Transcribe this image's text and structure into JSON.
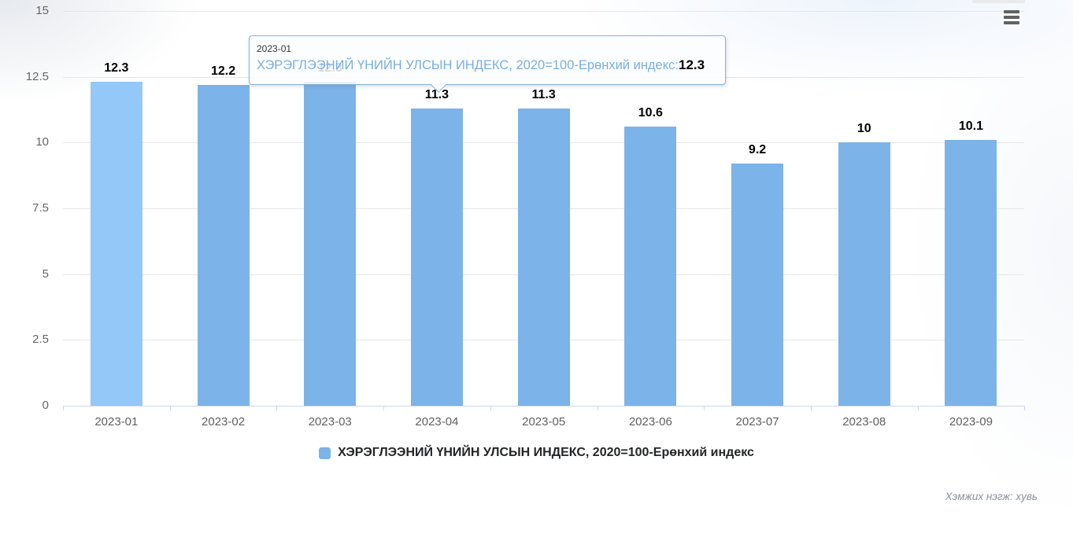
{
  "chart_data": {
    "type": "bar",
    "categories": [
      "2023-01",
      "2023-02",
      "2023-03",
      "2023-04",
      "2023-05",
      "2023-06",
      "2023-07",
      "2023-08",
      "2023-09"
    ],
    "series": [
      {
        "name": "ХЭРЭГЛЭЭНИЙ ҮНИЙН УЛСЫН ИНДЕКС, 2020=100-Ерөнхий индекс",
        "values": [
          12.3,
          12.2,
          12.3,
          11.3,
          11.3,
          10.6,
          9.2,
          10,
          10.1
        ]
      }
    ],
    "title": "",
    "xlabel": "",
    "ylabel": "",
    "ylim": [
      0,
      15
    ],
    "yticks": [
      0,
      2.5,
      5,
      7.5,
      10,
      12.5,
      15
    ],
    "grid": true,
    "legend_position": "bottom",
    "highlighted_index": 0,
    "colors": {
      "bar": "#7cb3e8",
      "bar_hover": "#93c8f8",
      "gridline": "#e6e6e6",
      "axis": "#ccd6eb"
    }
  },
  "tooltip": {
    "title": "2023-01",
    "series_label": "ХЭРЭГЛЭЭНИЙ ҮНИЙН УЛСЫН ИНДЕКС, 2020=100-Ерөнхий индекс:",
    "value": "12.3"
  },
  "legend": {
    "label": "ХЭРЭГЛЭЭНИЙ ҮНИЙН УЛСЫН ИНДЕКС, 2020=100-Ерөнхий индекс",
    "swatch_color": "#7cb3e8"
  },
  "footer": {
    "unit_note": "Хэмжих нэгж: хувь"
  },
  "icons": {
    "context_menu": "hamburger-icon"
  }
}
